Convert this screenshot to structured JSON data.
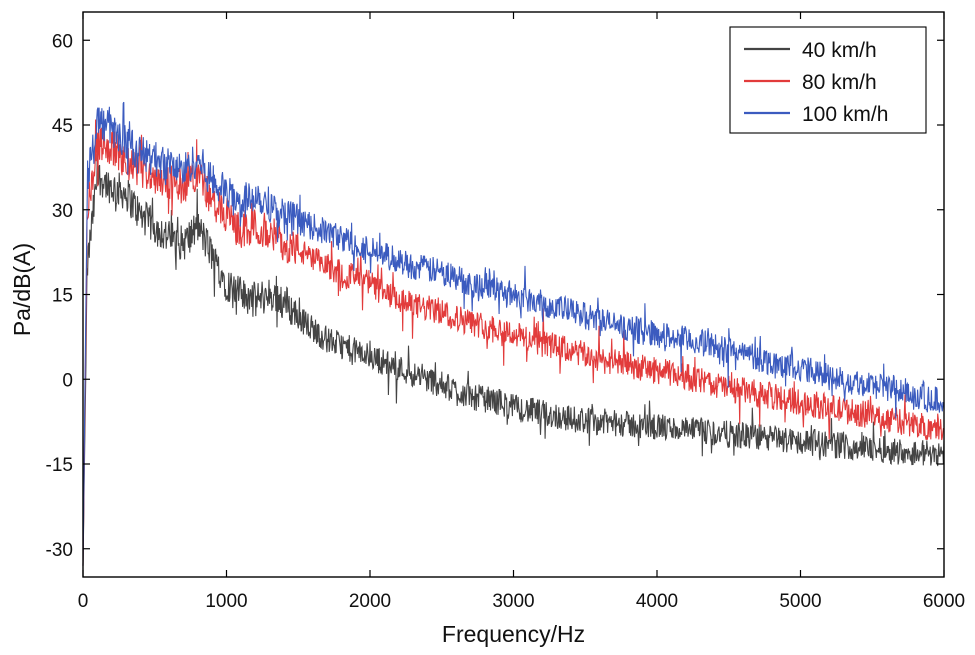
{
  "chart_data": {
    "type": "line",
    "title": "",
    "xlabel": "Frequency/Hz",
    "ylabel": "Pa/dB(A)",
    "xlim": [
      0,
      6000
    ],
    "ylim": [
      -35,
      65
    ],
    "xticks": [
      0,
      1000,
      2000,
      3000,
      4000,
      5000,
      6000
    ],
    "yticks": [
      -30,
      -15,
      0,
      15,
      30,
      45,
      60
    ],
    "xtick_labels": [
      "0",
      "1000",
      "2000",
      "3000",
      "4000",
      "5000",
      "6000"
    ],
    "ytick_labels": [
      "-30",
      "-15",
      "0",
      "15",
      "30",
      "45",
      "60"
    ],
    "grid": false,
    "legend_position": "top-right",
    "series": [
      {
        "name": "40 km/h",
        "color": "#444444",
        "x": [
          0,
          30,
          100,
          200,
          300,
          400,
          500,
          600,
          700,
          800,
          900,
          1000,
          1100,
          1200,
          1300,
          1400,
          1500,
          1600,
          1700,
          1800,
          1900,
          2000,
          2100,
          2200,
          2300,
          2400,
          2500,
          2600,
          2700,
          2800,
          2900,
          3000,
          3200,
          3400,
          3600,
          3800,
          4000,
          4200,
          4400,
          4600,
          4800,
          5000,
          5200,
          5400,
          5600,
          5800,
          6000
        ],
        "y": [
          -33,
          20,
          36,
          34,
          33,
          29,
          27,
          25,
          24,
          27,
          22,
          17,
          15,
          14,
          15,
          14,
          11,
          9,
          7,
          6,
          5,
          4,
          3,
          2,
          1,
          0,
          -1,
          -2,
          -3,
          -3.5,
          -4,
          -5,
          -6,
          -7,
          -7.5,
          -8,
          -8.5,
          -9,
          -9.5,
          -10,
          -10.5,
          -11,
          -11.5,
          -12,
          -12.5,
          -13,
          -13
        ]
      },
      {
        "name": "80 km/h",
        "color": "#e23b3b",
        "x": [
          0,
          30,
          100,
          200,
          300,
          400,
          500,
          600,
          700,
          800,
          900,
          1000,
          1100,
          1200,
          1300,
          1400,
          1500,
          1600,
          1700,
          1800,
          1900,
          2000,
          2100,
          2200,
          2300,
          2400,
          2500,
          2600,
          2700,
          2800,
          2900,
          3000,
          3200,
          3400,
          3600,
          3800,
          4000,
          4200,
          4400,
          4600,
          4800,
          5000,
          5200,
          5400,
          5600,
          5800,
          6000
        ],
        "y": [
          -33,
          30,
          42,
          41,
          38,
          37,
          36,
          35,
          34,
          37,
          31,
          29,
          26,
          27,
          26,
          24,
          23,
          21,
          20,
          19,
          18,
          17,
          15,
          14,
          13,
          12.5,
          12,
          11,
          10,
          9.5,
          9,
          8,
          6.5,
          5,
          3.5,
          2.5,
          1.5,
          0.5,
          -1,
          -2,
          -3,
          -4,
          -5,
          -6,
          -7,
          -8,
          -9
        ]
      },
      {
        "name": "100 km/h",
        "color": "#3b5bbf",
        "x": [
          0,
          30,
          100,
          200,
          300,
          400,
          500,
          600,
          700,
          800,
          900,
          1000,
          1100,
          1200,
          1300,
          1400,
          1500,
          1600,
          1700,
          1800,
          1900,
          2000,
          2100,
          2200,
          2300,
          2400,
          2500,
          2600,
          2700,
          2800,
          2900,
          3000,
          3200,
          3400,
          3600,
          3800,
          4000,
          4200,
          4400,
          4600,
          4800,
          5000,
          5200,
          5400,
          5600,
          5800,
          6000
        ],
        "y": [
          -33,
          36,
          46,
          44,
          42,
          40,
          39,
          38,
          37,
          39,
          35,
          33,
          31,
          33,
          31,
          29,
          28,
          27,
          26,
          25,
          24,
          23,
          22,
          21,
          20,
          19.5,
          19,
          18,
          17,
          16.5,
          16,
          15,
          13.5,
          12,
          10.5,
          9,
          8,
          7,
          6,
          4.5,
          3,
          2,
          0.5,
          -0.5,
          -1.5,
          -2.5,
          -4
        ]
      }
    ]
  }
}
